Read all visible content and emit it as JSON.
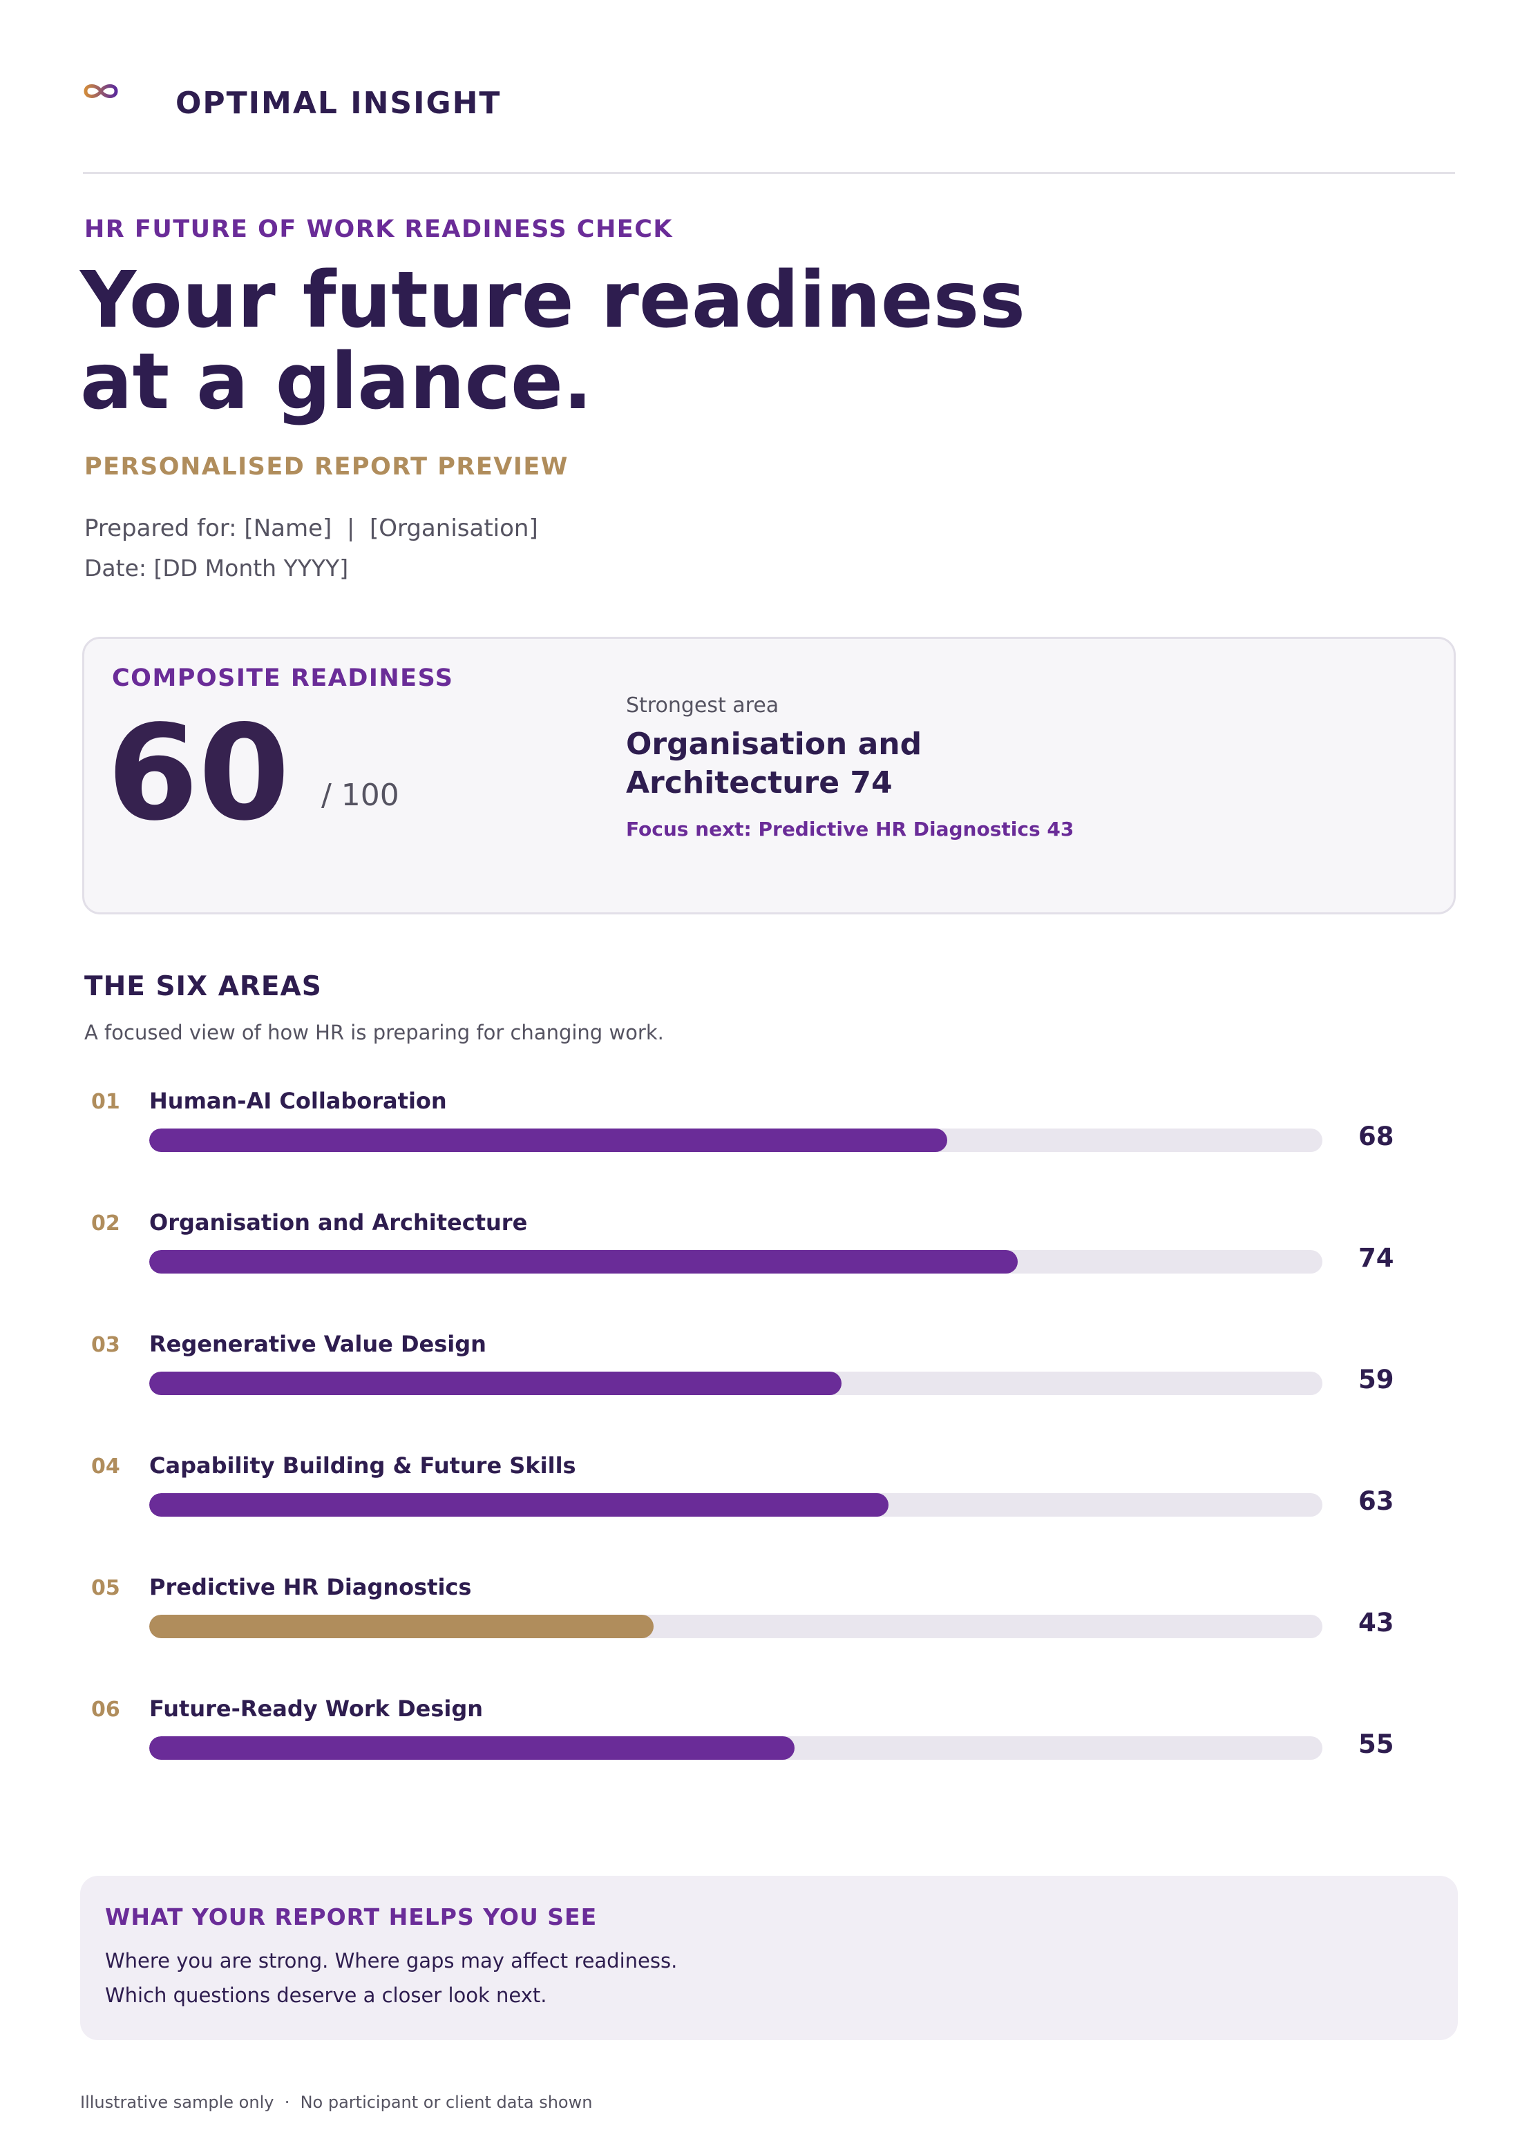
{
  "brand": {
    "name": "OPTIMAL INSIGHT",
    "logo_icon": "infinity-icon",
    "accent": "#6a2c98",
    "gold": "#b08d5c"
  },
  "header": {
    "kicker": "HR FUTURE OF WORK READINESS CHECK",
    "headline_line1": "Your future readiness",
    "headline_line2": "at a glance.",
    "subkicker": "PERSONALISED REPORT PREVIEW",
    "prepared_for": "Prepared for: [Name]  |  [Organisation]",
    "date": "Date: [DD Month YYYY]"
  },
  "composite": {
    "label": "COMPOSITE READINESS",
    "score": "60",
    "max": "/ 100",
    "strongest_label": "Strongest area",
    "strongest_area": "Organisation and Architecture  74",
    "focus_next": "Focus next: Predictive HR Diagnostics  43"
  },
  "areas": {
    "title": "THE SIX AREAS",
    "description": "A focused view of how HR is preparing for changing work.",
    "items": [
      {
        "num": "01",
        "name": "Human-AI Collaboration",
        "score": "68",
        "value": 68,
        "highlight": false
      },
      {
        "num": "02",
        "name": "Organisation and Architecture",
        "score": "74",
        "value": 74,
        "highlight": false
      },
      {
        "num": "03",
        "name": "Regenerative Value Design",
        "score": "59",
        "value": 59,
        "highlight": false
      },
      {
        "num": "04",
        "name": "Capability Building & Future Skills",
        "score": "63",
        "value": 63,
        "highlight": false
      },
      {
        "num": "05",
        "name": "Predictive HR Diagnostics",
        "score": "43",
        "value": 43,
        "highlight": true
      },
      {
        "num": "06",
        "name": "Future-Ready Work Design",
        "score": "55",
        "value": 55,
        "highlight": false
      }
    ]
  },
  "help": {
    "title": "WHAT YOUR REPORT HELPS YOU SEE",
    "line1": "Where you are strong. Where gaps may affect readiness.",
    "line2": "Which questions deserve a closer look next."
  },
  "footer": "Illustrative sample only  ·  No participant or client data shown"
}
